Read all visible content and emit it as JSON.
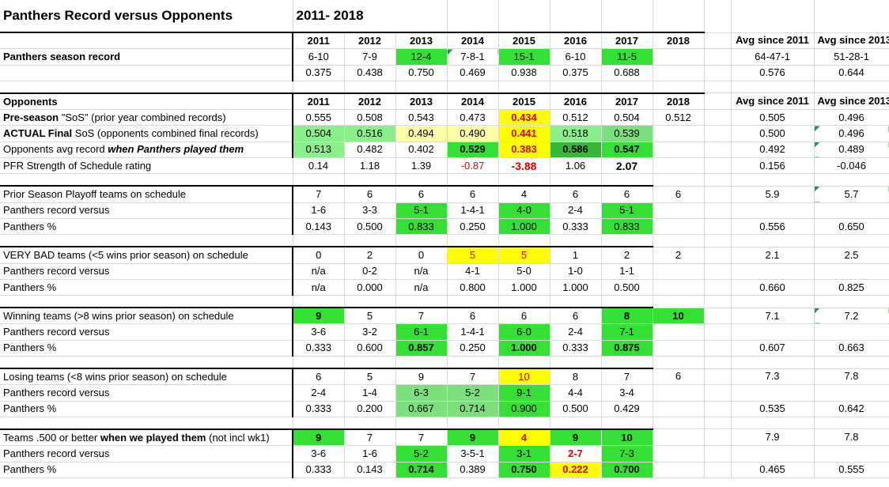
{
  "title": "Panthers Record versus Opponents",
  "span": "2011- 2018",
  "years": [
    "2011",
    "2012",
    "2013",
    "2014",
    "2015",
    "2016",
    "2017",
    "2018"
  ],
  "avg_headers": [
    "Avg since 2011",
    "Avg since 2013"
  ],
  "season": {
    "label": "Panthers season record",
    "records": [
      "6-10",
      "7-9",
      "12-4",
      "7-8-1",
      "15-1",
      "6-10",
      "11-5",
      ""
    ],
    "pcts": [
      "0.375",
      "0.438",
      "0.750",
      "0.469",
      "0.938",
      "0.375",
      "0.688",
      ""
    ],
    "avg_records": [
      "64-47-1",
      "51-28-1"
    ],
    "avg_pcts": [
      "0.576",
      "0.644"
    ]
  },
  "opponents": {
    "header": "Opponents",
    "preseason": {
      "label_a": "Pre-season ",
      "label_b": "\"SoS\" (prior year combined records)",
      "values": [
        "0.555",
        "0.508",
        "0.543",
        "0.473",
        "0.434",
        "0.512",
        "0.504",
        "0.512"
      ],
      "avgs": [
        "0.505",
        "0.496"
      ]
    },
    "actual": {
      "label_a": "ACTUAL Final",
      "label_b": " SoS (opponents combined final records)",
      "values": [
        "0.504",
        "0.516",
        "0.494",
        "0.490",
        "0.441",
        "0.518",
        "0.539",
        ""
      ],
      "avgs": [
        "0.500",
        "0.496"
      ]
    },
    "avg_record": {
      "label_a": "Opponents avg record ",
      "label_b": "when Panthers played them",
      "values": [
        "0.513",
        "0.482",
        "0.402",
        "0.529",
        "0.383",
        "0.586",
        "0.547",
        ""
      ],
      "avgs": [
        "0.492",
        "0.489"
      ]
    },
    "pfr": {
      "label": "PFR Strength of Schedule rating",
      "values": [
        "0.14",
        "1.18",
        "1.39",
        "-0.87",
        "-3.88",
        "1.06",
        "2.07",
        ""
      ],
      "avgs": [
        "0.156",
        "-0.046"
      ]
    }
  },
  "playoff": {
    "label": "Prior Season Playoff teams on schedule",
    "counts": [
      "7",
      "6",
      "6",
      "6",
      "4",
      "6",
      "6",
      "6"
    ],
    "count_avgs": [
      "5.9",
      "5.7"
    ],
    "record_label": "Panthers record versus",
    "records": [
      "1-6",
      "3-3",
      "5-1",
      "1-4-1",
      "4-0",
      "2-4",
      "5-1",
      ""
    ],
    "pct_label": "Panthers %",
    "pcts": [
      "0.143",
      "0.500",
      "0.833",
      "0.250",
      "1.000",
      "0.333",
      "0.833",
      ""
    ],
    "pct_avgs": [
      "0.556",
      "0.650"
    ]
  },
  "verybad": {
    "label": "VERY BAD teams (<5 wins prior season) on schedule",
    "counts": [
      "0",
      "2",
      "0",
      "5",
      "5",
      "1",
      "2",
      "2"
    ],
    "count_avgs": [
      "2.1",
      "2.5"
    ],
    "record_label": "Panthers record versus",
    "records": [
      "n/a",
      "0-2",
      "n/a",
      "4-1",
      "5-0",
      "1-0",
      "1-1",
      ""
    ],
    "pct_label": "Panthers %",
    "pcts": [
      "n/a",
      "0.000",
      "n/a",
      "0.800",
      "1.000",
      "1.000",
      "0.500",
      ""
    ],
    "pct_avgs": [
      "0.660",
      "0.825"
    ]
  },
  "winning": {
    "label": "Winning teams (>8 wins prior season) on schedule",
    "counts": [
      "9",
      "5",
      "7",
      "6",
      "6",
      "6",
      "8",
      "10"
    ],
    "count_avgs": [
      "7.1",
      "7.2"
    ],
    "record_label": "Panthers record versus",
    "records": [
      "3-6",
      "3-2",
      "6-1",
      "1-4-1",
      "6-0",
      "2-4",
      "7-1",
      ""
    ],
    "pct_label": "Panthers %",
    "pcts": [
      "0.333",
      "0.600",
      "0.857",
      "0.250",
      "1.000",
      "0.333",
      "0.875",
      ""
    ],
    "pct_avgs": [
      "0.607",
      "0.663"
    ]
  },
  "losing": {
    "label": "Losing teams (<8 wins prior season) on schedule",
    "counts": [
      "6",
      "5",
      "9",
      "7",
      "10",
      "8",
      "7",
      "6"
    ],
    "count_avgs": [
      "7.3",
      "7.8"
    ],
    "record_label": "Panthers record versus",
    "records": [
      "2-4",
      "1-4",
      "6-3",
      "5-2",
      "9-1",
      "4-4",
      "3-4",
      ""
    ],
    "pct_label": "Panthers %",
    "pcts": [
      "0.333",
      "0.200",
      "0.667",
      "0.714",
      "0.900",
      "0.500",
      "0.429",
      ""
    ],
    "pct_avgs": [
      "0.535",
      "0.642"
    ]
  },
  "teams500": {
    "label_a": "Teams .500 or better ",
    "label_b": "when we played them",
    "label_c": " (not incl wk1)",
    "counts": [
      "9",
      "7",
      "7",
      "9",
      "4",
      "9",
      "10",
      ""
    ],
    "count_avgs": [
      "7.9",
      "7.8"
    ],
    "record_label": "Panthers record versus",
    "records": [
      "3-6",
      "1-6",
      "5-2",
      "3-5-1",
      "3-1",
      "2-7",
      "7-3",
      ""
    ],
    "pct_label": "Panthers %",
    "pcts": [
      "0.333",
      "0.143",
      "0.714",
      "0.389",
      "0.750",
      "0.222",
      "0.700",
      ""
    ],
    "pct_avgs": [
      "0.465",
      "0.555"
    ]
  },
  "colors": {
    "green": "#33e033",
    "light_green": "#8af08a",
    "dark_green": "#38b838",
    "yellow": "#ffff00",
    "pale_yellow": "#ffffa8",
    "red_text": "#e00000"
  }
}
